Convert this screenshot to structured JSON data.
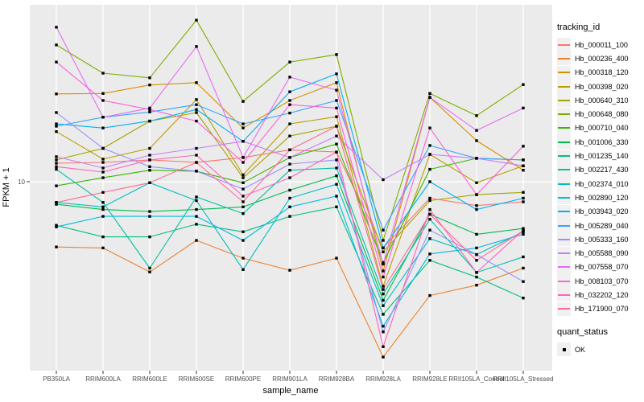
{
  "figure": {
    "xlabel": "sample_name",
    "ylabel": "FPKM + 1",
    "y_tick_labels": [
      "10"
    ],
    "legend_title": "tracking_id",
    "quant_legend_title": "quant_status",
    "quant_legend_items": [
      {
        "label": "OK",
        "marker": "black-square"
      }
    ]
  },
  "colors": {
    "panel_bg": "#EBEBEB",
    "gridline": "#FFFFFF",
    "point": "#000000",
    "tick_label": "#4D4D4D",
    "axis_title": "#000000",
    "legend_key_bg": "#F0F0F0"
  },
  "chart_data": {
    "type": "line",
    "title": "",
    "xlabel": "sample_name",
    "ylabel": "FPKM + 1",
    "y_scale": "log10",
    "y_axis_breaks": [
      10
    ],
    "ylim_approx": [
      1.6,
      55
    ],
    "grid": "major-only",
    "legend_position": "right",
    "point_marker": "black square (quant_status = OK)",
    "x_categories": [
      "PB350LA",
      "RRIM600LA",
      "RRIM600LE",
      "RRIM600SE",
      "RRIM600PE",
      "RRIM901LA",
      "RRIM928BA",
      "RRIM928LA",
      "RRIM928LE",
      "RRII105LA_Control",
      "RRII105LA_Stressed"
    ],
    "series": [
      {
        "name": "Hb_000011_100",
        "color": "#F8766D",
        "values": [
          12.0,
          12.1,
          12.4,
          12.1,
          12.7,
          13.7,
          13.4,
          5.2,
          8.5,
          7.9,
          8.2
        ]
      },
      {
        "name": "Hb_000236_400",
        "color": "#EA8331",
        "values": [
          5.25,
          5.2,
          4.1,
          5.6,
          4.7,
          4.17,
          4.7,
          1.77,
          3.25,
          3.6,
          4.26
        ]
      },
      {
        "name": "Hb_000318_120",
        "color": "#D89000",
        "values": [
          23.8,
          23.9,
          26.0,
          26.6,
          17.0,
          22.3,
          26.6,
          4.14,
          23.0,
          15.0,
          11.2
        ]
      },
      {
        "name": "Hb_000398_020",
        "color": "#C09B00",
        "values": [
          16.4,
          12.5,
          13.9,
          22.5,
          10.7,
          17.7,
          19.0,
          3.56,
          13.1,
          9.9,
          11.7
        ]
      },
      {
        "name": "Hb_000640_310",
        "color": "#A3A500",
        "values": [
          12.4,
          13.9,
          18.2,
          19.8,
          10.4,
          15.7,
          17.3,
          5.0,
          8.3,
          8.8,
          9.0
        ]
      },
      {
        "name": "Hb_000648_080",
        "color": "#7CAE00",
        "values": [
          38.6,
          29.2,
          27.9,
          49.3,
          22.1,
          32.6,
          35.1,
          5.6,
          23.9,
          19.2,
          26.1
        ]
      },
      {
        "name": "Hb_000710_040",
        "color": "#39B600",
        "values": [
          9.6,
          10.4,
          11.2,
          11.1,
          9.9,
          12.7,
          14.5,
          4.5,
          11.3,
          12.6,
          12.4
        ]
      },
      {
        "name": "Hb_001006_330",
        "color": "#00BB4E",
        "values": [
          8.0,
          7.6,
          7.45,
          7.6,
          7.8,
          9.2,
          10.6,
          3.1,
          7.25,
          5.95,
          6.3
        ]
      },
      {
        "name": "Hb_001235_140",
        "color": "#00BF7D",
        "values": [
          6.5,
          5.8,
          5.8,
          6.57,
          6.1,
          7.1,
          7.8,
          2.7,
          4.6,
          3.9,
          3.17
        ]
      },
      {
        "name": "Hb_002217_430",
        "color": "#00C1A3",
        "values": [
          11.3,
          8.15,
          4.26,
          8.6,
          7.3,
          11.2,
          11.45,
          3.3,
          6.9,
          4.08,
          4.76
        ]
      },
      {
        "name": "Hb_002374_010",
        "color": "#00BFC4",
        "values": [
          8.15,
          7.8,
          9.9,
          8.3,
          4.2,
          8.5,
          9.75,
          2.94,
          5.7,
          4.87,
          6.1
        ]
      },
      {
        "name": "Hb_002890_120",
        "color": "#00BAE0",
        "values": [
          6.4,
          7.1,
          7.1,
          7.1,
          5.6,
          7.8,
          8.67,
          2.4,
          4.9,
          5.2,
          5.95
        ]
      },
      {
        "name": "Hb_003943_020",
        "color": "#00B0F6",
        "values": [
          17.7,
          17.0,
          18.2,
          20.4,
          14.9,
          24.3,
          29.0,
          5.2,
          10.0,
          7.6,
          8.5
        ]
      },
      {
        "name": "Hb_005289_040",
        "color": "#35A2FF",
        "values": [
          17.3,
          18.9,
          19.9,
          21.4,
          17.7,
          19.7,
          22.3,
          6.2,
          14.3,
          12.6,
          12.4
        ]
      },
      {
        "name": "Hb_005333_160",
        "color": "#9590FF",
        "values": [
          19.8,
          13.9,
          11.6,
          11.1,
          9.3,
          11.9,
          12.4,
          2.27,
          6.2,
          4.87,
          3.73
        ]
      },
      {
        "name": "Hb_005588_090",
        "color": "#C77CFF",
        "values": [
          12.8,
          11.45,
          13.0,
          13.9,
          14.9,
          12.7,
          15.7,
          10.2,
          13.1,
          12.6,
          11.7
        ]
      },
      {
        "name": "Hb_007558_070",
        "color": "#E76BF3",
        "values": [
          46.0,
          18.9,
          20.7,
          38.0,
          12.7,
          28.1,
          24.7,
          4.43,
          23.0,
          16.6,
          20.7
        ]
      },
      {
        "name": "Hb_008103_070",
        "color": "#FA62DB",
        "values": [
          32.6,
          22.3,
          20.4,
          18.2,
          12.1,
          21.4,
          20.7,
          3.9,
          17.0,
          8.8,
          14.2
        ]
      },
      {
        "name": "Hb_032202_120",
        "color": "#FF62BC",
        "values": [
          11.6,
          11.0,
          12.4,
          13.0,
          8.67,
          10.4,
          13.4,
          1.96,
          7.6,
          4.08,
          6.2
        ]
      },
      {
        "name": "Hb_171900_070",
        "color": "#FF6A98",
        "values": [
          8.15,
          9.0,
          9.9,
          12.1,
          8.2,
          13.7,
          17.3,
          3.45,
          7.25,
          4.6,
          6.17
        ]
      }
    ]
  }
}
